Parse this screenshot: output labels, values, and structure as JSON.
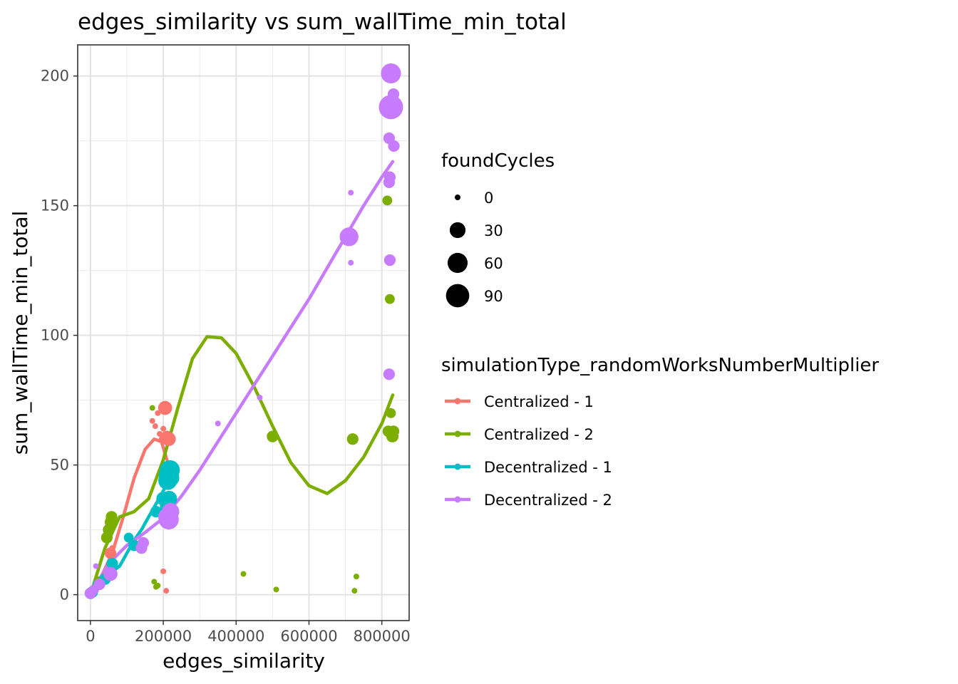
{
  "chart_data": {
    "type": "scatter",
    "title": "edges_similarity  vs  sum_wallTime_min_total",
    "xlabel": "edges_similarity",
    "ylabel": "sum_wallTime_min_total",
    "xlim": [
      -35000,
      875000
    ],
    "ylim": [
      -10,
      212
    ],
    "x_ticks": [
      0,
      200000,
      400000,
      600000,
      800000
    ],
    "x_tick_labels": [
      "0",
      "200000",
      "400000",
      "600000",
      "800000"
    ],
    "y_ticks": [
      0,
      50,
      100,
      150,
      200
    ],
    "y_tick_labels": [
      "0",
      "50",
      "100",
      "150",
      "200"
    ],
    "grid": true,
    "legend_position": "right",
    "size_legend": {
      "title": "foundCycles",
      "entries": [
        {
          "label": "0",
          "value": 0
        },
        {
          "label": "30",
          "value": 30
        },
        {
          "label": "60",
          "value": 60
        },
        {
          "label": "90",
          "value": 90
        }
      ]
    },
    "color_legend": {
      "title": "simulationType_randomWorksNumberMultiplier"
    },
    "series": [
      {
        "name": "Centralized - 1",
        "color": "#F8766D",
        "points": [
          [
            0,
            0.5,
            0
          ],
          [
            5000,
            1,
            0
          ],
          [
            10000,
            2,
            0
          ],
          [
            20000,
            4,
            0
          ],
          [
            40000,
            8,
            0
          ],
          [
            50000,
            12,
            0
          ],
          [
            55000,
            16,
            10
          ],
          [
            60000,
            18,
            0
          ],
          [
            170000,
            67,
            0
          ],
          [
            178000,
            65,
            0
          ],
          [
            185000,
            70,
            0
          ],
          [
            190000,
            62,
            0
          ],
          [
            195000,
            60,
            0
          ],
          [
            200000,
            64,
            0
          ],
          [
            205000,
            72,
            20
          ],
          [
            210000,
            61,
            10
          ],
          [
            215000,
            60,
            20
          ],
          [
            200000,
            9,
            0
          ],
          [
            208000,
            1.5,
            0
          ]
        ],
        "smooth": [
          [
            0,
            0
          ],
          [
            30000,
            7
          ],
          [
            60000,
            16
          ],
          [
            90000,
            30
          ],
          [
            120000,
            45
          ],
          [
            150000,
            56
          ],
          [
            175000,
            60
          ],
          [
            195000,
            59
          ],
          [
            210000,
            52
          ]
        ]
      },
      {
        "name": "Centralized - 2",
        "color": "#7CAE00",
        "points": [
          [
            0,
            0.5,
            0
          ],
          [
            10000,
            3,
            0
          ],
          [
            20000,
            6,
            0
          ],
          [
            45000,
            22,
            10
          ],
          [
            50000,
            25,
            10
          ],
          [
            55000,
            28,
            10
          ],
          [
            58000,
            30,
            10
          ],
          [
            170000,
            72,
            0
          ],
          [
            175000,
            5,
            0
          ],
          [
            180000,
            3,
            0
          ],
          [
            185000,
            3.5,
            0
          ],
          [
            420000,
            8,
            0
          ],
          [
            500000,
            61,
            10
          ],
          [
            510000,
            2,
            0
          ],
          [
            720000,
            60,
            10
          ],
          [
            725000,
            1.5,
            0
          ],
          [
            730000,
            7,
            0
          ],
          [
            815000,
            152,
            5
          ],
          [
            818000,
            63,
            10
          ],
          [
            822000,
            114,
            5
          ],
          [
            825000,
            70,
            5
          ],
          [
            828000,
            61,
            10
          ],
          [
            832000,
            63,
            10
          ],
          [
            830000,
            61,
            10
          ]
        ],
        "smooth": [
          [
            0,
            0
          ],
          [
            40000,
            18
          ],
          [
            80000,
            30
          ],
          [
            120000,
            32
          ],
          [
            160000,
            37
          ],
          [
            200000,
            52
          ],
          [
            240000,
            72
          ],
          [
            280000,
            91
          ],
          [
            320000,
            99.5
          ],
          [
            360000,
            99
          ],
          [
            400000,
            93
          ],
          [
            450000,
            80
          ],
          [
            500000,
            65
          ],
          [
            550000,
            51
          ],
          [
            600000,
            42
          ],
          [
            650000,
            39
          ],
          [
            700000,
            44
          ],
          [
            750000,
            53
          ],
          [
            800000,
            66
          ],
          [
            830000,
            77
          ]
        ]
      },
      {
        "name": "Decentralized - 1",
        "color": "#00BFC4",
        "points": [
          [
            0,
            0.5,
            10
          ],
          [
            5000,
            1,
            10
          ],
          [
            10000,
            2,
            5
          ],
          [
            20000,
            4,
            5
          ],
          [
            40000,
            6,
            10
          ],
          [
            55000,
            8,
            20
          ],
          [
            60000,
            12,
            10
          ],
          [
            105000,
            22,
            5
          ],
          [
            120000,
            19,
            10
          ],
          [
            140000,
            18,
            10
          ],
          [
            180000,
            32,
            10
          ],
          [
            200000,
            37,
            20
          ],
          [
            210000,
            34,
            20
          ],
          [
            212000,
            44,
            50
          ],
          [
            215000,
            46,
            60
          ],
          [
            218000,
            48,
            60
          ],
          [
            220000,
            45,
            40
          ],
          [
            216000,
            37,
            30
          ]
        ],
        "smooth": [
          [
            0,
            0
          ],
          [
            20000,
            3
          ],
          [
            40000,
            7
          ],
          [
            60000,
            9
          ],
          [
            80000,
            11
          ],
          [
            100000,
            16
          ],
          [
            120000,
            21
          ],
          [
            140000,
            25
          ],
          [
            160000,
            30
          ],
          [
            180000,
            35
          ],
          [
            200000,
            40
          ],
          [
            210000,
            43
          ],
          [
            220000,
            46
          ]
        ]
      },
      {
        "name": "Decentralized - 2",
        "color": "#C77CFF",
        "points": [
          [
            0,
            0.5,
            10
          ],
          [
            10000,
            2,
            5
          ],
          [
            15000,
            11,
            0
          ],
          [
            25000,
            4,
            10
          ],
          [
            55000,
            8,
            20
          ],
          [
            140000,
            18,
            10
          ],
          [
            145000,
            20,
            10
          ],
          [
            210000,
            30,
            40
          ],
          [
            215000,
            29,
            60
          ],
          [
            220000,
            32,
            40
          ],
          [
            350000,
            66,
            0
          ],
          [
            465000,
            76,
            0
          ],
          [
            715000,
            155,
            0
          ],
          [
            710000,
            138,
            50
          ],
          [
            715000,
            128,
            0
          ],
          [
            820000,
            85,
            10
          ],
          [
            822000,
            129,
            10
          ],
          [
            820000,
            159,
            10
          ],
          [
            822000,
            161,
            10
          ],
          [
            820000,
            176,
            10
          ],
          [
            825000,
            201,
            60
          ],
          [
            825000,
            188,
            100
          ],
          [
            832000,
            193,
            10
          ],
          [
            833000,
            173,
            10
          ]
        ],
        "smooth": [
          [
            0,
            0
          ],
          [
            50000,
            12
          ],
          [
            100000,
            19
          ],
          [
            150000,
            24
          ],
          [
            200000,
            29.5
          ],
          [
            250000,
            38
          ],
          [
            300000,
            48
          ],
          [
            350000,
            59
          ],
          [
            400000,
            70
          ],
          [
            450000,
            81
          ],
          [
            500000,
            92
          ],
          [
            550000,
            103
          ],
          [
            600000,
            114
          ],
          [
            650000,
            126
          ],
          [
            700000,
            138
          ],
          [
            750000,
            150
          ],
          [
            800000,
            161
          ],
          [
            830000,
            167
          ]
        ]
      }
    ]
  }
}
